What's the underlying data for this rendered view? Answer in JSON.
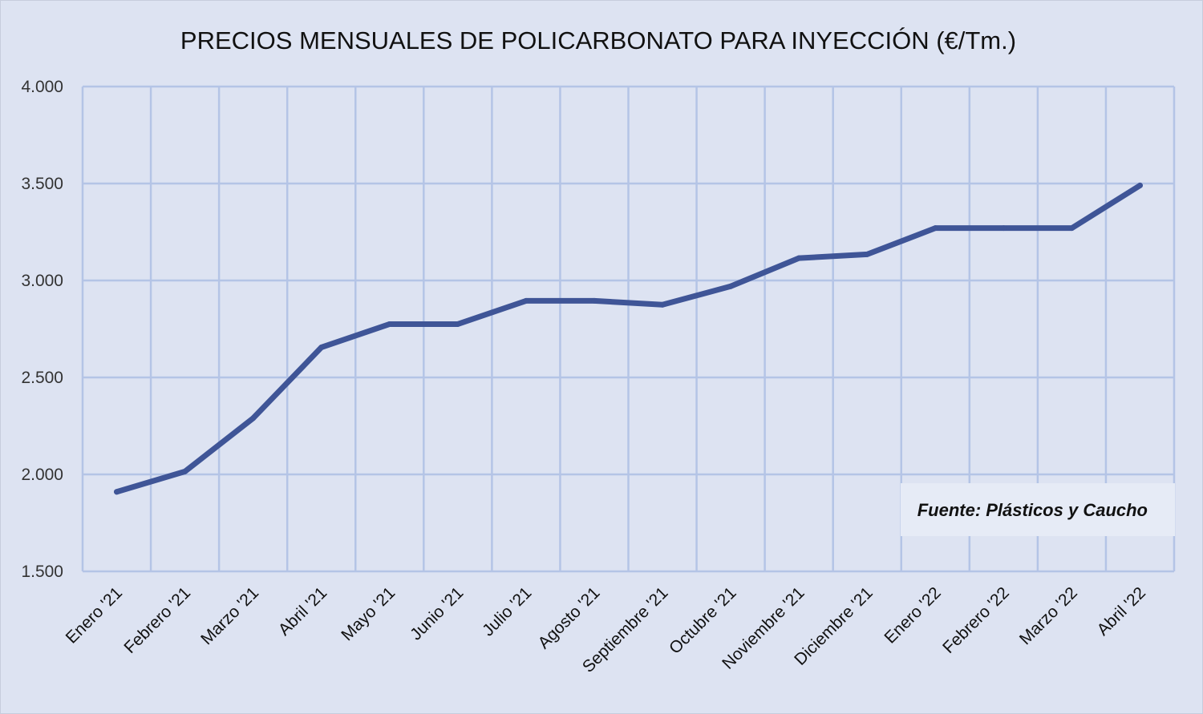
{
  "chart_data": {
    "type": "line",
    "title": "PRECIOS MENSUALES  DE POLICARBONATO PARA INYECCIÓN (€/Tm.)",
    "xlabel": "",
    "ylabel": "",
    "categories": [
      "Enero '21",
      "Febrero '21",
      "Marzo '21",
      "Abril '21",
      "Mayo '21",
      "Junio '21",
      "Julio '21",
      "Agosto '21",
      "Septiembre '21",
      "Octubre '21",
      "Noviembre '21",
      "Diciembre '21",
      "Enero '22",
      "Febrero '22",
      "Marzo '22",
      "Abril '22"
    ],
    "series": [
      {
        "values": [
          1910,
          2015,
          2290,
          2655,
          2775,
          2775,
          2895,
          2895,
          2875,
          2970,
          3115,
          3135,
          3270,
          3270,
          3270,
          3490
        ]
      }
    ],
    "ylim": [
      1500,
      4000
    ],
    "yticks": [
      1500,
      2000,
      2500,
      3000,
      3500,
      4000
    ],
    "ytick_labels": [
      "1.500",
      "2.000",
      "2.500",
      "3.000",
      "3.500",
      "4.000"
    ],
    "grid": true,
    "legend": "none",
    "source_note": "Fuente: Plásticos y Caucho",
    "colors": {
      "line": "#3f5597",
      "grid": "#b4c4e6",
      "background": "#dde3f2",
      "note_background": "#e6ebf6"
    }
  }
}
